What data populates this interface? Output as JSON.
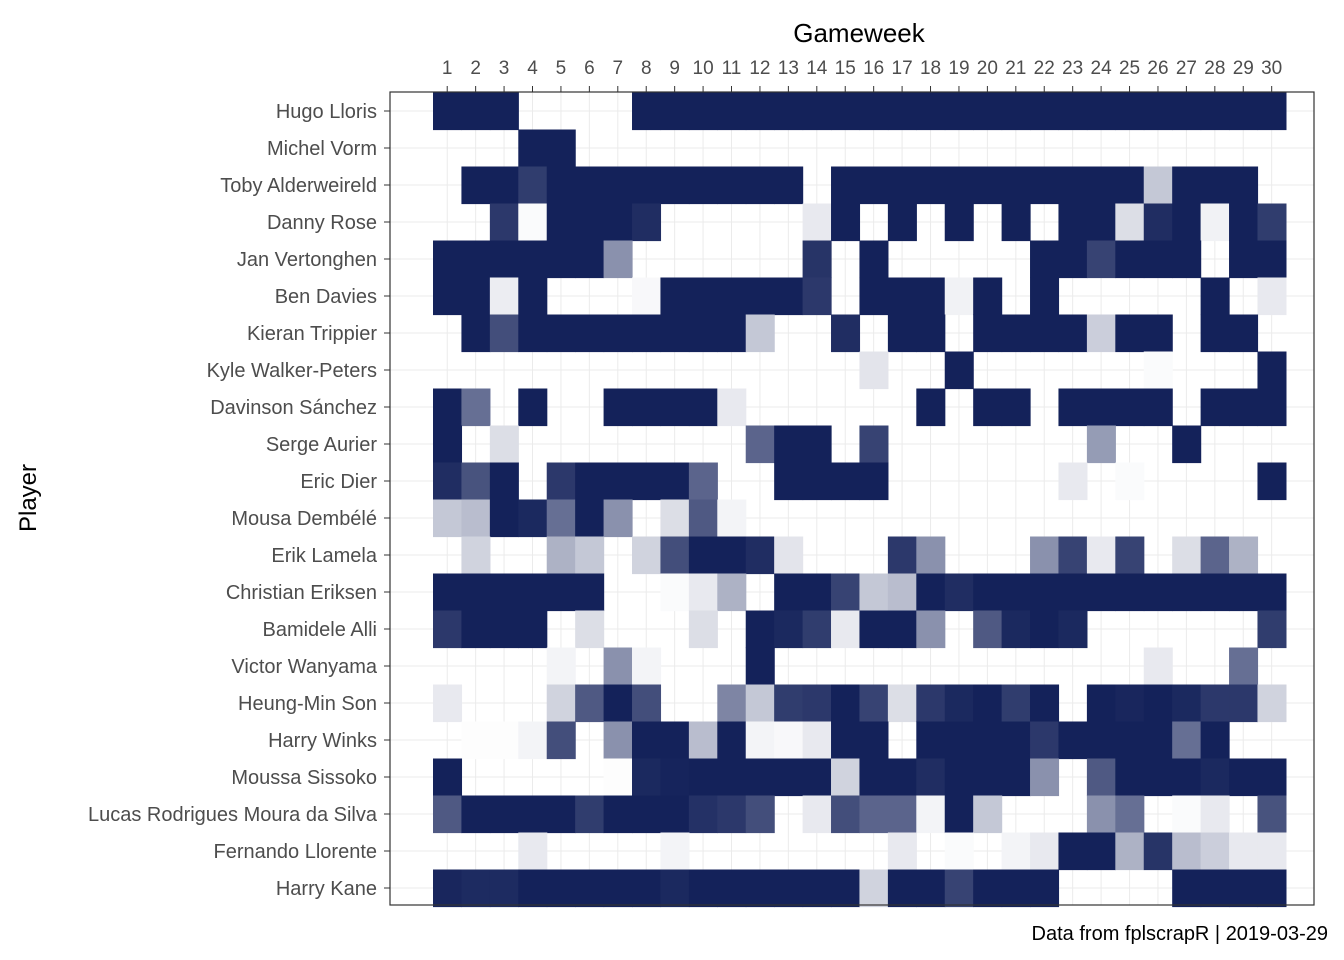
{
  "chart_data": {
    "type": "heatmap",
    "xlabel": "Gameweek",
    "ylabel": "Player",
    "caption": "Data from fplscrapR | 2019-03-29",
    "x": [
      1,
      2,
      3,
      4,
      5,
      6,
      7,
      8,
      9,
      10,
      11,
      12,
      13,
      14,
      15,
      16,
      17,
      18,
      19,
      20,
      21,
      22,
      23,
      24,
      25,
      26,
      27,
      28,
      29,
      30
    ],
    "players": [
      "Hugo Lloris",
      "Michel Vorm",
      "Toby Alderweireld",
      "Danny Rose",
      "Jan Vertonghen",
      "Ben Davies",
      "Kieran Trippier",
      "Kyle Walker-Peters",
      "Davinson Sánchez",
      "Serge Aurier",
      "Eric Dier",
      "Mousa Dembélé",
      "Erik Lamela",
      "Christian Eriksen",
      "Bamidele Alli",
      "Victor Wanyama",
      "Heung-Min Son",
      "Harry Winks",
      "Moussa Sissoko",
      "Lucas Rodrigues Moura da Silva",
      "Fernando Llorente",
      "Harry Kane"
    ],
    "value_scale": "fraction of minutes played (0 = none, 1 = full)",
    "colors": {
      "low": "#ffffff",
      "high": "#14225A"
    },
    "grid": true,
    "values": [
      [
        1,
        1,
        1,
        0,
        0,
        0,
        0,
        1,
        1,
        1,
        1,
        1,
        1,
        1,
        1,
        1,
        1,
        1,
        1,
        1,
        1,
        1,
        1,
        1,
        1,
        1,
        1,
        1,
        1,
        1
      ],
      [
        0,
        0,
        0,
        1,
        1,
        0,
        0,
        0,
        0,
        0,
        0,
        0,
        0,
        0,
        0,
        0,
        0,
        0,
        0,
        0,
        0,
        0,
        0,
        0,
        0,
        0,
        0,
        0,
        0,
        0
      ],
      [
        0,
        1,
        1,
        0.88,
        1,
        1,
        1,
        1,
        1,
        1,
        1,
        1,
        1,
        0,
        1,
        1,
        1,
        1,
        1,
        1,
        1,
        1,
        1,
        1,
        1,
        0.25,
        1,
        1,
        1,
        0
      ],
      [
        0,
        0,
        0.9,
        0.02,
        1,
        1,
        1,
        0.95,
        0,
        0,
        0,
        0,
        0,
        0.1,
        1,
        0,
        1,
        0,
        1,
        0,
        1,
        0,
        1,
        1,
        0.15,
        0.95,
        1,
        0.06,
        1,
        0.88
      ],
      [
        1,
        1,
        1,
        1,
        1,
        1,
        0.5,
        0,
        0,
        0,
        0,
        0,
        0,
        0.92,
        0,
        1,
        0,
        0,
        0,
        0,
        0,
        1,
        1,
        0.85,
        1,
        1,
        1,
        0,
        1,
        1
      ],
      [
        1,
        1,
        0.08,
        1,
        0,
        0,
        0,
        0.03,
        1,
        1,
        1,
        1,
        1,
        0.9,
        0,
        1,
        1,
        1,
        0.06,
        1,
        0,
        1,
        0,
        0,
        0,
        0,
        0,
        1,
        0,
        0.1
      ],
      [
        0,
        1,
        0.8,
        1,
        1,
        1,
        1,
        1,
        1,
        1,
        1,
        0.25,
        0,
        0,
        0.95,
        0,
        1,
        1,
        0,
        1,
        1,
        1,
        1,
        0.22,
        1,
        1,
        0,
        1,
        1,
        0
      ],
      [
        0,
        0,
        0,
        0,
        0,
        0,
        0,
        0,
        0,
        0,
        0,
        0,
        0,
        0,
        0,
        0.12,
        0,
        0,
        1,
        0,
        0,
        0,
        0,
        0,
        0,
        0.02,
        0,
        0,
        0,
        1
      ],
      [
        1,
        0.65,
        0,
        1,
        0,
        0,
        1,
        1,
        1,
        1,
        0.1,
        0,
        0,
        0,
        0,
        0,
        0,
        1,
        0,
        1,
        1,
        0,
        1,
        1,
        1,
        1,
        0,
        1,
        1,
        1
      ],
      [
        1,
        0,
        0.15,
        0,
        0,
        0,
        0,
        0,
        0,
        0,
        0,
        0.7,
        1,
        1,
        0,
        0.85,
        0,
        0,
        0,
        0,
        0,
        0,
        0,
        0.45,
        0,
        0,
        1,
        0,
        0,
        0
      ],
      [
        0.95,
        0.78,
        1,
        0,
        0.9,
        1,
        1,
        1,
        1,
        0.7,
        0,
        0,
        1,
        1,
        1,
        1,
        0,
        0,
        0,
        0,
        0,
        0,
        0.1,
        0,
        0.02,
        0,
        0,
        0,
        0,
        1
      ],
      [
        0.25,
        0.3,
        1,
        0.97,
        0.65,
        1,
        0.5,
        0,
        0.15,
        0.75,
        0.05,
        0,
        0,
        0,
        0,
        0,
        0,
        0,
        0,
        0,
        0,
        0,
        0,
        0,
        0,
        0,
        0,
        0,
        0,
        0
      ],
      [
        0,
        0.2,
        0,
        0,
        0.35,
        0.25,
        0,
        0.2,
        0.8,
        1,
        1,
        0.95,
        0.12,
        0,
        0,
        0,
        0.9,
        0.5,
        0,
        0,
        0,
        0.5,
        0.85,
        0.1,
        0.85,
        0,
        0.15,
        0.7,
        0.35,
        0
      ],
      [
        1,
        1,
        1,
        1,
        1,
        1,
        0,
        0,
        0.02,
        0.1,
        0.35,
        0,
        1,
        1,
        0.85,
        0.25,
        0.3,
        1,
        0.95,
        1,
        1,
        1,
        1,
        1,
        1,
        1,
        1,
        1,
        1,
        1
      ],
      [
        0.9,
        1,
        1,
        1,
        0,
        0.15,
        0,
        0,
        0,
        0.15,
        0,
        1,
        0.97,
        0.88,
        0.1,
        1,
        1,
        0.5,
        0,
        0.75,
        0.97,
        1,
        0.97,
        0,
        0,
        0,
        0,
        0,
        0,
        0.88
      ],
      [
        0,
        0,
        0,
        0,
        0.05,
        0,
        0.5,
        0.05,
        0,
        0,
        0,
        1,
        0,
        0,
        0,
        0,
        0,
        0,
        0,
        0,
        0,
        0,
        0,
        0,
        0,
        0.1,
        0,
        0,
        0.65,
        0
      ],
      [
        0.1,
        0,
        0,
        0,
        0.2,
        0.75,
        1,
        0.8,
        0,
        0,
        0.55,
        0.25,
        0.88,
        0.9,
        1,
        0.85,
        0.15,
        0.9,
        0.97,
        1,
        0.88,
        1,
        0,
        1,
        0.98,
        1,
        0.97,
        0.9,
        0.9,
        0.2
      ],
      [
        0,
        0.01,
        0.01,
        0.05,
        0.8,
        0,
        0.5,
        1,
        1,
        0.3,
        1,
        0.05,
        0.03,
        0.1,
        1,
        1,
        0,
        1,
        1,
        1,
        1,
        0.9,
        1,
        1,
        1,
        1,
        0.65,
        1,
        0,
        0
      ],
      [
        1,
        0,
        0,
        0,
        0,
        0,
        0.01,
        0.97,
        0.99,
        1,
        1,
        1,
        1,
        1,
        0.2,
        1,
        1,
        0.95,
        1,
        1,
        1,
        0.5,
        0,
        0.75,
        1,
        1,
        1,
        0.97,
        1,
        1
      ],
      [
        0.75,
        1,
        1,
        1,
        1,
        0.88,
        1,
        1,
        1,
        0.93,
        0.9,
        0.8,
        0,
        0.1,
        0.8,
        0.7,
        0.7,
        0.05,
        1,
        0.25,
        0,
        0,
        0,
        0.5,
        0.65,
        0,
        0.02,
        0.1,
        0,
        0.78
      ],
      [
        0,
        0,
        0,
        0.1,
        0,
        0,
        0,
        0,
        0.05,
        0,
        0,
        0,
        0,
        0,
        0,
        0,
        0.1,
        0,
        0.02,
        0,
        0.05,
        0.1,
        1,
        1,
        0.35,
        0.92,
        0.3,
        0.22,
        0.1,
        0.1
      ],
      [
        0.98,
        0.96,
        0.96,
        1,
        1,
        1,
        1,
        1,
        0.97,
        1,
        1,
        1,
        1,
        1,
        1,
        0.2,
        1,
        1,
        0.85,
        1,
        1,
        1,
        0,
        0,
        0,
        0,
        1,
        1,
        1,
        1
      ]
    ]
  }
}
